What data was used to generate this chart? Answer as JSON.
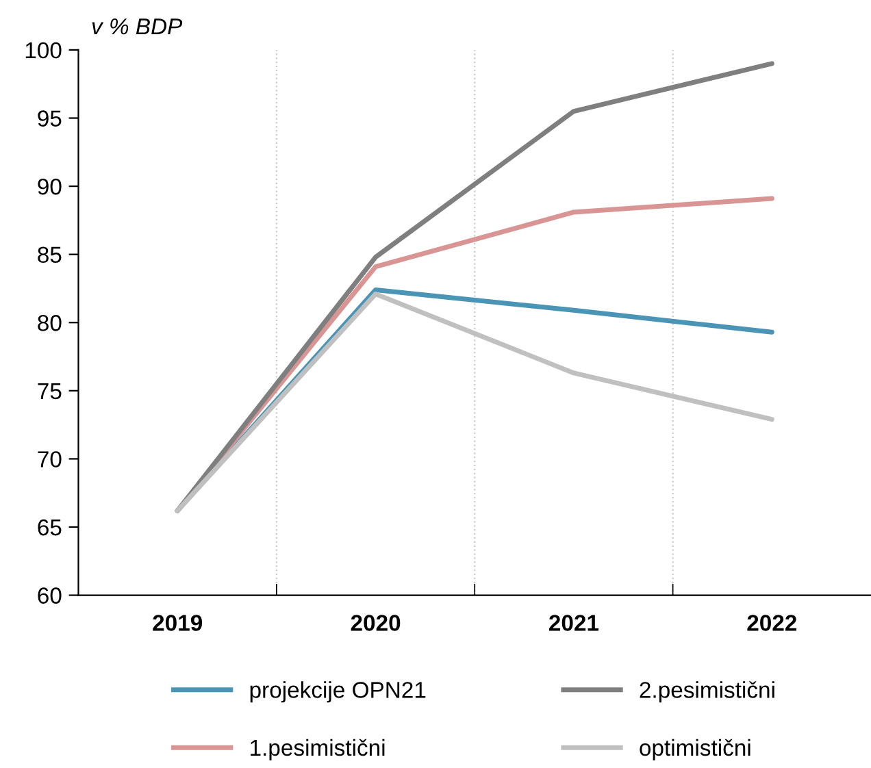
{
  "chart_data": {
    "type": "line",
    "ylabel": "v % BDP",
    "categories": [
      "2019",
      "2020",
      "2021",
      "2022"
    ],
    "series": [
      {
        "name": "projekcije OPN21",
        "color": "#4a95b5",
        "values": [
          66.2,
          82.4,
          80.9,
          79.3
        ]
      },
      {
        "name": "1.pesimistični",
        "color": "#d99594",
        "values": [
          66.2,
          84.1,
          88.1,
          89.1
        ]
      },
      {
        "name": "2.pesimistični",
        "color": "#7f7f7f",
        "values": [
          66.2,
          84.8,
          95.5,
          99.0
        ]
      },
      {
        "name": "optimistični",
        "color": "#c0c0c0",
        "values": [
          66.2,
          82.1,
          76.3,
          72.9
        ]
      }
    ],
    "ylim": [
      60,
      100
    ],
    "yticks": [
      60,
      65,
      70,
      75,
      80,
      85,
      90,
      95,
      100
    ],
    "grid": "x",
    "legend": "bottom",
    "marker": "none",
    "line_style": "solid"
  }
}
